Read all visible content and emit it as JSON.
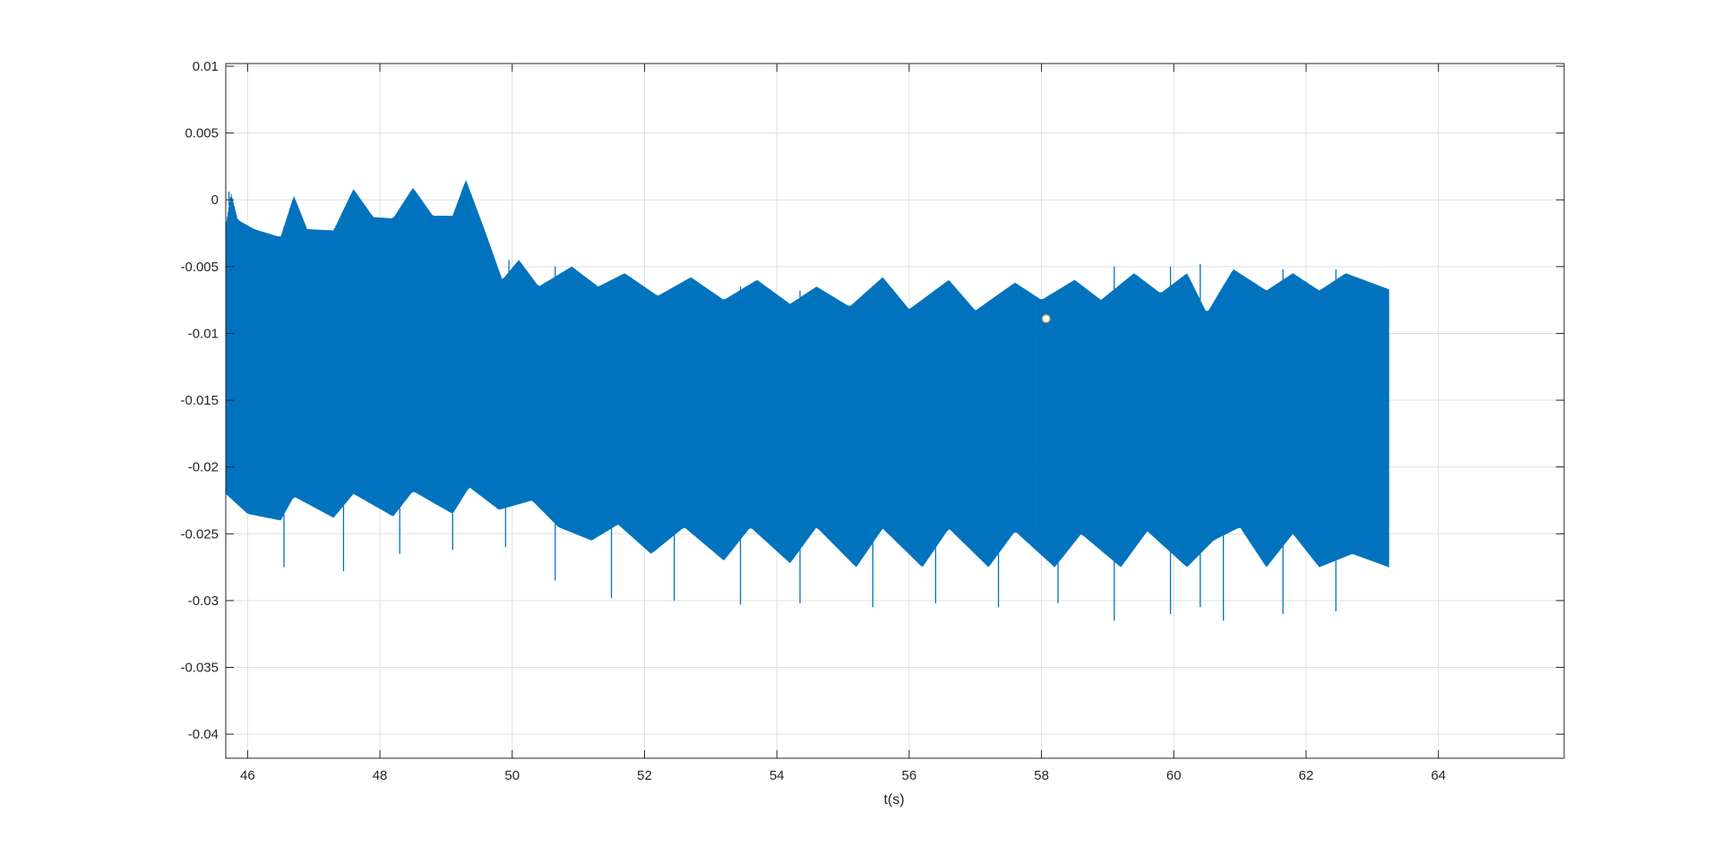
{
  "chart_data": {
    "type": "line",
    "title": "",
    "xlabel": "t(s)",
    "ylabel": "",
    "xlim": [
      45.67,
      65.9
    ],
    "ylim": [
      -0.0418,
      0.0102
    ],
    "grid": true,
    "xticks": [
      46,
      48,
      50,
      52,
      54,
      56,
      58,
      60,
      62,
      64
    ],
    "xtick_labels": [
      "46",
      "48",
      "50",
      "52",
      "54",
      "56",
      "58",
      "60",
      "62",
      "64"
    ],
    "yticks": [
      0.01,
      0.005,
      0,
      -0.005,
      -0.01,
      -0.015,
      -0.02,
      -0.025,
      -0.03,
      -0.035,
      -0.04
    ],
    "ytick_labels": [
      "0.01",
      "0.005",
      "0",
      "-0.005",
      "-0.01",
      "-0.015",
      "-0.02",
      "-0.025",
      "-0.03",
      "-0.035",
      "-0.04"
    ],
    "series": [
      {
        "color": "#0072BD",
        "t_start": 45.67,
        "t_end": 63.25,
        "envelope_upper": [
          [
            45.67,
            -0.002
          ],
          [
            45.75,
            0.0005
          ],
          [
            45.85,
            -0.0015
          ],
          [
            46.1,
            -0.0022
          ],
          [
            46.5,
            -0.0028
          ],
          [
            46.7,
            0.0003
          ],
          [
            46.9,
            -0.0022
          ],
          [
            47.3,
            -0.0023
          ],
          [
            47.6,
            0.0008
          ],
          [
            47.9,
            -0.0013
          ],
          [
            48.2,
            -0.0014
          ],
          [
            48.5,
            0.0009
          ],
          [
            48.8,
            -0.0012
          ],
          [
            49.1,
            -0.0012
          ],
          [
            49.3,
            0.0015
          ],
          [
            49.6,
            -0.0025
          ],
          [
            49.85,
            -0.006
          ],
          [
            50.1,
            -0.0045
          ],
          [
            50.4,
            -0.0065
          ],
          [
            50.9,
            -0.005
          ],
          [
            51.3,
            -0.0065
          ],
          [
            51.7,
            -0.0055
          ],
          [
            52.2,
            -0.0072
          ],
          [
            52.7,
            -0.0058
          ],
          [
            53.2,
            -0.0075
          ],
          [
            53.7,
            -0.006
          ],
          [
            54.2,
            -0.0078
          ],
          [
            54.6,
            -0.0065
          ],
          [
            55.1,
            -0.008
          ],
          [
            55.6,
            -0.0058
          ],
          [
            56.0,
            -0.0082
          ],
          [
            56.6,
            -0.006
          ],
          [
            57.0,
            -0.0083
          ],
          [
            57.6,
            -0.0062
          ],
          [
            58.0,
            -0.0075
          ],
          [
            58.5,
            -0.006
          ],
          [
            58.9,
            -0.0075
          ],
          [
            59.4,
            -0.0055
          ],
          [
            59.8,
            -0.007
          ],
          [
            60.2,
            -0.0055
          ],
          [
            60.5,
            -0.0085
          ],
          [
            60.9,
            -0.0052
          ],
          [
            61.4,
            -0.0068
          ],
          [
            61.8,
            -0.0055
          ],
          [
            62.2,
            -0.0068
          ],
          [
            62.6,
            -0.0055
          ],
          [
            63.25,
            -0.0067
          ]
        ],
        "envelope_lower": [
          [
            45.67,
            -0.022
          ],
          [
            46.0,
            -0.0235
          ],
          [
            46.5,
            -0.024
          ],
          [
            46.7,
            -0.0222
          ],
          [
            47.3,
            -0.0238
          ],
          [
            47.6,
            -0.022
          ],
          [
            48.2,
            -0.0237
          ],
          [
            48.5,
            -0.0218
          ],
          [
            49.1,
            -0.0235
          ],
          [
            49.35,
            -0.0215
          ],
          [
            49.8,
            -0.0232
          ],
          [
            50.3,
            -0.0225
          ],
          [
            50.7,
            -0.0245
          ],
          [
            51.2,
            -0.0255
          ],
          [
            51.6,
            -0.0243
          ],
          [
            52.1,
            -0.0265
          ],
          [
            52.6,
            -0.0245
          ],
          [
            53.2,
            -0.027
          ],
          [
            53.6,
            -0.0245
          ],
          [
            54.2,
            -0.0272
          ],
          [
            54.6,
            -0.0245
          ],
          [
            55.2,
            -0.0275
          ],
          [
            55.6,
            -0.0246
          ],
          [
            56.2,
            -0.0275
          ],
          [
            56.6,
            -0.0246
          ],
          [
            57.2,
            -0.0275
          ],
          [
            57.6,
            -0.0248
          ],
          [
            58.2,
            -0.0275
          ],
          [
            58.6,
            -0.025
          ],
          [
            59.2,
            -0.0275
          ],
          [
            59.6,
            -0.0248
          ],
          [
            60.2,
            -0.0275
          ],
          [
            60.6,
            -0.0255
          ],
          [
            61.0,
            -0.0245
          ],
          [
            61.4,
            -0.0275
          ],
          [
            61.8,
            -0.025
          ],
          [
            62.2,
            -0.0275
          ],
          [
            62.7,
            -0.0265
          ],
          [
            63.25,
            -0.0275
          ]
        ],
        "spikes_down": [
          [
            46.55,
            -0.0275
          ],
          [
            47.45,
            -0.0278
          ],
          [
            48.3,
            -0.0265
          ],
          [
            49.1,
            -0.0262
          ],
          [
            49.9,
            -0.026
          ],
          [
            50.65,
            -0.0285
          ],
          [
            51.5,
            -0.0298
          ],
          [
            52.45,
            -0.03
          ],
          [
            53.45,
            -0.0303
          ],
          [
            54.35,
            -0.0302
          ],
          [
            55.45,
            -0.0305
          ],
          [
            56.4,
            -0.0302
          ],
          [
            57.35,
            -0.0305
          ],
          [
            58.25,
            -0.0302
          ],
          [
            59.1,
            -0.0315
          ],
          [
            59.95,
            -0.031
          ],
          [
            60.4,
            -0.0305
          ],
          [
            60.75,
            -0.0315
          ],
          [
            61.65,
            -0.031
          ],
          [
            62.45,
            -0.0308
          ]
        ],
        "spikes_up": [
          [
            45.72,
            0.0006
          ],
          [
            46.55,
            -0.0048
          ],
          [
            47.45,
            -0.0048
          ],
          [
            48.3,
            -0.0045
          ],
          [
            49.1,
            -0.0048
          ],
          [
            49.95,
            -0.0045
          ],
          [
            50.65,
            -0.005
          ],
          [
            51.5,
            -0.006
          ],
          [
            52.45,
            -0.0065
          ],
          [
            53.45,
            -0.0065
          ],
          [
            54.35,
            -0.0068
          ],
          [
            55.45,
            -0.0068
          ],
          [
            56.4,
            -0.007
          ],
          [
            57.35,
            -0.0072
          ],
          [
            58.25,
            -0.007
          ],
          [
            59.1,
            -0.005
          ],
          [
            59.95,
            -0.005
          ],
          [
            60.4,
            -0.0048
          ],
          [
            60.75,
            -0.0065
          ],
          [
            61.65,
            -0.0052
          ],
          [
            62.45,
            -0.0052
          ]
        ]
      }
    ],
    "marker": {
      "x": 58.07,
      "y": -0.0089
    }
  }
}
